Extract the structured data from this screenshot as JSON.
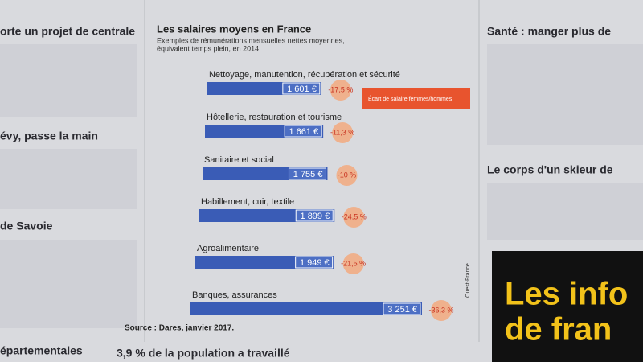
{
  "chart_data": {
    "type": "bar",
    "title": "Les salaires moyens en France",
    "subtitle": [
      "Exemples de rémunérations mensuelles nettes moyennes,",
      "équivalent temps plein, en 2014"
    ],
    "categories": [
      "Nettoyage, manutention, récupération et sécurité",
      "Hôtellerie, restauration et tourisme",
      "Sanitaire et social",
      "Habillement, cuir, textile",
      "Agroalimentaire",
      "Banques, assurances"
    ],
    "values": [
      1601,
      1661,
      1755,
      1899,
      1949,
      3251
    ],
    "value_labels": [
      "1 601 €",
      "1 661 €",
      "1 755 €",
      "1 899 €",
      "1 949 €",
      "3 251 €"
    ],
    "color": "#3a5cb6",
    "gap": {
      "name": "Écart de salaire femmes/hommes",
      "color": "#f2a97f",
      "values": [
        -17.5,
        -11.3,
        -10,
        -24.5,
        -21.5,
        -36.3
      ],
      "value_labels": [
        "-17,5 %",
        "-11,3 %",
        "-10 %",
        "-24,5 %",
        "-21,5 %",
        "-36,3 %"
      ]
    },
    "source": "Source : Dares, janvier 2017.",
    "credit": "Ouest-France"
  },
  "articles": {
    "left": [
      "orte un projet de centrale",
      "évy, passe la main",
      "de Savoie",
      "épartementales"
    ],
    "bottom": "3,9 % de la population a travaillé",
    "right": [
      "Santé : manger plus de",
      "Le corps d'un skieur de"
    ],
    "ad": [
      "Les info",
      "de fran"
    ]
  }
}
